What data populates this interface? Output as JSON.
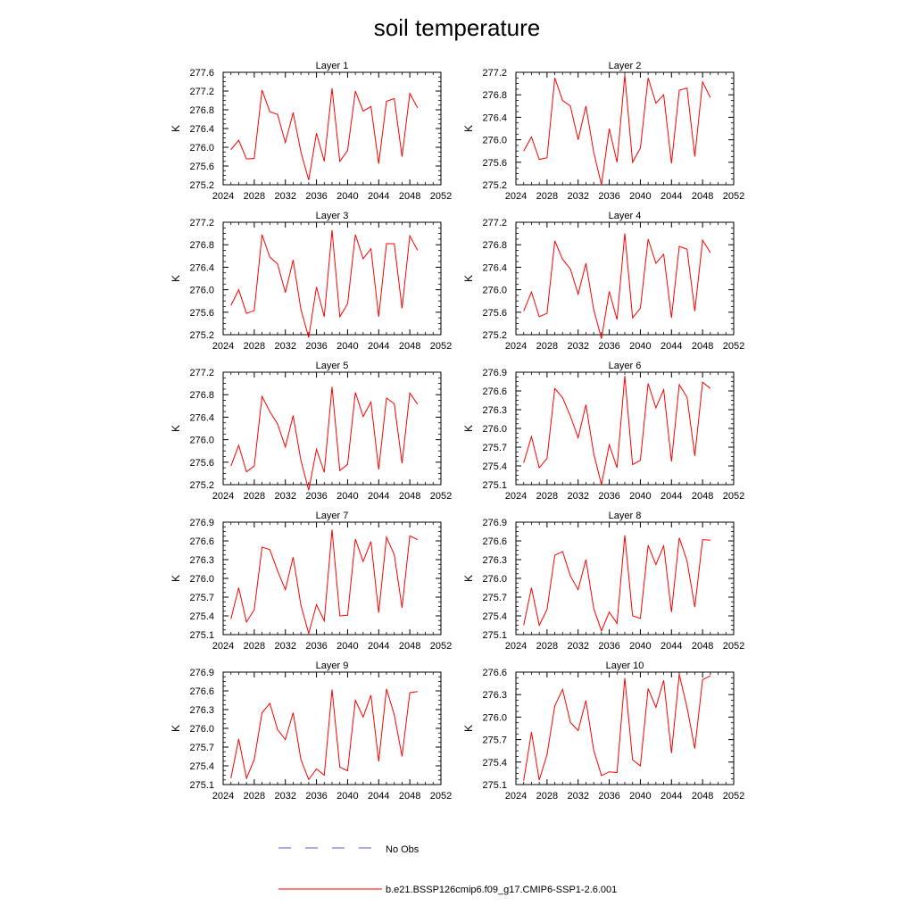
{
  "figure": {
    "title": "soil temperature",
    "ylabel": "K",
    "legend": [
      {
        "label": "No Obs",
        "color": "#5a5ad6",
        "dash": true
      },
      {
        "label": "b.e21.BSSP126cmip6.f09_g17.CMIP6-SSP1-2.6.001",
        "color": "#ff0000",
        "dash": false
      }
    ]
  },
  "chart_data": [
    {
      "type": "line",
      "title": "Layer 1",
      "ylabel": "K",
      "xlim": [
        2024,
        2052
      ],
      "ylim": [
        275.2,
        277.6
      ],
      "xticks": [
        "2024",
        "2028",
        "2032",
        "2036",
        "2040",
        "2044",
        "2048",
        "2052"
      ],
      "yticks": [
        "275.2",
        "275.6",
        "276.0",
        "276.4",
        "276.8",
        "277.2",
        "277.6"
      ],
      "x": [
        2025,
        2026,
        2027,
        2028,
        2029,
        2030,
        2031,
        2032,
        2033,
        2034,
        2035,
        2036,
        2037,
        2038,
        2039,
        2040,
        2041,
        2042,
        2043,
        2044,
        2045,
        2046,
        2047,
        2048,
        2049
      ],
      "series": [
        {
          "name": "b.e21.BSSP126cmip6.f09_g17.CMIP6-SSP1-2.6.001",
          "color": "#ff0000",
          "values": [
            275.95,
            276.15,
            275.75,
            275.76,
            277.22,
            276.76,
            276.7,
            276.1,
            276.74,
            275.9,
            275.3,
            276.3,
            275.7,
            277.26,
            275.7,
            275.93,
            277.2,
            276.77,
            276.87,
            275.65,
            276.98,
            277.04,
            275.8,
            277.15,
            276.84
          ]
        }
      ]
    },
    {
      "type": "line",
      "title": "Layer 2",
      "ylabel": "K",
      "xlim": [
        2024,
        2052
      ],
      "ylim": [
        275.2,
        277.2
      ],
      "xticks": [
        "2024",
        "2028",
        "2032",
        "2036",
        "2040",
        "2044",
        "2048",
        "2052"
      ],
      "yticks": [
        "275.2",
        "275.6",
        "276.0",
        "276.4",
        "276.8",
        "277.2"
      ],
      "x": [
        2025,
        2026,
        2027,
        2028,
        2029,
        2030,
        2031,
        2032,
        2033,
        2034,
        2035,
        2036,
        2037,
        2038,
        2039,
        2040,
        2041,
        2042,
        2043,
        2044,
        2045,
        2046,
        2047,
        2048,
        2049
      ],
      "series": [
        {
          "name": "b.e21.BSSP126cmip6.f09_g17.CMIP6-SSP1-2.6.001",
          "color": "#ff0000",
          "values": [
            275.8,
            276.05,
            275.65,
            275.68,
            277.1,
            276.7,
            276.6,
            276.0,
            276.6,
            275.78,
            275.2,
            276.2,
            275.6,
            277.15,
            275.6,
            275.85,
            277.1,
            276.65,
            276.8,
            275.58,
            276.88,
            276.92,
            275.7,
            277.03,
            276.75
          ]
        }
      ]
    },
    {
      "type": "line",
      "title": "Layer 3",
      "ylabel": "K",
      "xlim": [
        2024,
        2052
      ],
      "ylim": [
        275.2,
        277.2
      ],
      "xticks": [
        "2024",
        "2028",
        "2032",
        "2036",
        "2040",
        "2044",
        "2048",
        "2052"
      ],
      "yticks": [
        "275.2",
        "275.6",
        "276.0",
        "276.4",
        "276.8",
        "277.2"
      ],
      "x": [
        2025,
        2026,
        2027,
        2028,
        2029,
        2030,
        2031,
        2032,
        2033,
        2034,
        2035,
        2036,
        2037,
        2038,
        2039,
        2040,
        2041,
        2042,
        2043,
        2044,
        2045,
        2046,
        2047,
        2048,
        2049
      ],
      "series": [
        {
          "name": "b.e21.BSSP126cmip6.f09_g17.CMIP6-SSP1-2.6.001",
          "color": "#ff0000",
          "values": [
            275.72,
            276.0,
            275.58,
            275.63,
            276.98,
            276.58,
            276.46,
            275.95,
            276.53,
            275.65,
            275.15,
            276.05,
            275.52,
            277.06,
            275.52,
            275.75,
            276.98,
            276.55,
            276.73,
            275.52,
            276.82,
            276.82,
            275.67,
            276.96,
            276.7
          ]
        }
      ]
    },
    {
      "type": "line",
      "title": "Layer 4",
      "ylabel": "K",
      "xlim": [
        2024,
        2052
      ],
      "ylim": [
        275.2,
        277.2
      ],
      "xticks": [
        "2024",
        "2028",
        "2032",
        "2036",
        "2040",
        "2044",
        "2048",
        "2052"
      ],
      "yticks": [
        "275.2",
        "275.6",
        "276.0",
        "276.4",
        "276.8",
        "277.2"
      ],
      "x": [
        2025,
        2026,
        2027,
        2028,
        2029,
        2030,
        2031,
        2032,
        2033,
        2034,
        2035,
        2036,
        2037,
        2038,
        2039,
        2040,
        2041,
        2042,
        2043,
        2044,
        2045,
        2046,
        2047,
        2048,
        2049
      ],
      "series": [
        {
          "name": "b.e21.BSSP126cmip6.f09_g17.CMIP6-SSP1-2.6.001",
          "color": "#ff0000",
          "values": [
            275.62,
            275.96,
            275.52,
            275.58,
            276.87,
            276.54,
            276.37,
            275.92,
            276.47,
            275.65,
            275.13,
            275.97,
            275.47,
            277.0,
            275.5,
            275.67,
            276.9,
            276.47,
            276.63,
            275.5,
            276.77,
            276.72,
            275.62,
            276.88,
            276.66
          ]
        }
      ]
    },
    {
      "type": "line",
      "title": "Layer 5",
      "ylabel": "K",
      "xlim": [
        2024,
        2052
      ],
      "ylim": [
        275.2,
        277.2
      ],
      "xticks": [
        "2024",
        "2028",
        "2032",
        "2036",
        "2040",
        "2044",
        "2048",
        "2052"
      ],
      "yticks": [
        "275.2",
        "275.6",
        "276.0",
        "276.4",
        "276.8",
        "277.2"
      ],
      "x": [
        2025,
        2026,
        2027,
        2028,
        2029,
        2030,
        2031,
        2032,
        2033,
        2034,
        2035,
        2036,
        2037,
        2038,
        2039,
        2040,
        2041,
        2042,
        2043,
        2044,
        2045,
        2046,
        2047,
        2048,
        2049
      ],
      "series": [
        {
          "name": "b.e21.BSSP126cmip6.f09_g17.CMIP6-SSP1-2.6.001",
          "color": "#ff0000",
          "values": [
            275.53,
            275.9,
            275.43,
            275.53,
            276.77,
            276.5,
            276.28,
            275.87,
            276.43,
            275.63,
            275.1,
            275.83,
            275.42,
            276.94,
            275.45,
            275.56,
            276.84,
            276.41,
            276.67,
            275.47,
            276.74,
            276.64,
            275.58,
            276.83,
            276.63
          ]
        }
      ]
    },
    {
      "type": "line",
      "title": "Layer 6",
      "ylabel": "K",
      "xlim": [
        2024,
        2052
      ],
      "ylim": [
        275.1,
        276.9
      ],
      "xticks": [
        "2024",
        "2028",
        "2032",
        "2036",
        "2040",
        "2044",
        "2048",
        "2052"
      ],
      "yticks": [
        "275.1",
        "275.4",
        "275.7",
        "276.0",
        "276.3",
        "276.6",
        "276.9"
      ],
      "x": [
        2025,
        2026,
        2027,
        2028,
        2029,
        2030,
        2031,
        2032,
        2033,
        2034,
        2035,
        2036,
        2037,
        2038,
        2039,
        2040,
        2041,
        2042,
        2043,
        2044,
        2045,
        2046,
        2047,
        2048,
        2049
      ],
      "series": [
        {
          "name": "b.e21.BSSP126cmip6.f09_g17.CMIP6-SSP1-2.6.001",
          "color": "#ff0000",
          "values": [
            275.45,
            275.87,
            275.37,
            275.52,
            276.64,
            276.49,
            276.2,
            275.85,
            276.38,
            275.6,
            275.1,
            275.74,
            275.37,
            276.84,
            275.42,
            275.49,
            276.72,
            276.33,
            276.62,
            275.47,
            276.7,
            276.5,
            275.56,
            276.74,
            276.64
          ]
        }
      ]
    },
    {
      "type": "line",
      "title": "Layer 7",
      "ylabel": "K",
      "xlim": [
        2024,
        2052
      ],
      "ylim": [
        275.1,
        276.9
      ],
      "xticks": [
        "2024",
        "2028",
        "2032",
        "2036",
        "2040",
        "2044",
        "2048",
        "2052"
      ],
      "yticks": [
        "275.1",
        "275.4",
        "275.7",
        "276.0",
        "276.3",
        "276.6",
        "276.9"
      ],
      "x": [
        2025,
        2026,
        2027,
        2028,
        2029,
        2030,
        2031,
        2032,
        2033,
        2034,
        2035,
        2036,
        2037,
        2038,
        2039,
        2040,
        2041,
        2042,
        2043,
        2044,
        2045,
        2046,
        2047,
        2048,
        2049
      ],
      "series": [
        {
          "name": "b.e21.BSSP126cmip6.f09_g17.CMIP6-SSP1-2.6.001",
          "color": "#ff0000",
          "values": [
            275.35,
            275.85,
            275.3,
            275.5,
            276.5,
            276.46,
            276.12,
            275.82,
            276.34,
            275.57,
            275.12,
            275.58,
            275.32,
            276.78,
            275.4,
            275.41,
            276.63,
            276.27,
            276.59,
            275.45,
            276.66,
            276.38,
            275.53,
            276.68,
            276.62
          ]
        }
      ]
    },
    {
      "type": "line",
      "title": "Layer 8",
      "ylabel": "K",
      "xlim": [
        2024,
        2052
      ],
      "ylim": [
        275.1,
        276.9
      ],
      "xticks": [
        "2024",
        "2028",
        "2032",
        "2036",
        "2040",
        "2044",
        "2048",
        "2052"
      ],
      "yticks": [
        "275.1",
        "275.4",
        "275.7",
        "276.0",
        "276.3",
        "276.6",
        "276.9"
      ],
      "x": [
        2025,
        2026,
        2027,
        2028,
        2029,
        2030,
        2031,
        2032,
        2033,
        2034,
        2035,
        2036,
        2037,
        2038,
        2039,
        2040,
        2041,
        2042,
        2043,
        2044,
        2045,
        2046,
        2047,
        2048,
        2049
      ],
      "series": [
        {
          "name": "b.e21.BSSP126cmip6.f09_g17.CMIP6-SSP1-2.6.001",
          "color": "#ff0000",
          "values": [
            275.25,
            275.85,
            275.25,
            275.5,
            276.37,
            276.43,
            276.04,
            275.82,
            276.3,
            275.52,
            275.16,
            275.46,
            275.28,
            276.69,
            275.4,
            275.36,
            276.53,
            276.22,
            276.52,
            275.46,
            276.65,
            276.28,
            275.54,
            276.62,
            276.61
          ]
        }
      ]
    },
    {
      "type": "line",
      "title": "Layer 9",
      "ylabel": "K",
      "xlim": [
        2024,
        2052
      ],
      "ylim": [
        275.1,
        276.9
      ],
      "xticks": [
        "2024",
        "2028",
        "2032",
        "2036",
        "2040",
        "2044",
        "2048",
        "2052"
      ],
      "yticks": [
        "275.1",
        "275.4",
        "275.7",
        "276.0",
        "276.3",
        "276.6",
        "276.9"
      ],
      "x": [
        2025,
        2026,
        2027,
        2028,
        2029,
        2030,
        2031,
        2032,
        2033,
        2034,
        2035,
        2036,
        2037,
        2038,
        2039,
        2040,
        2041,
        2042,
        2043,
        2044,
        2045,
        2046,
        2047,
        2048,
        2049
      ],
      "series": [
        {
          "name": "b.e21.BSSP126cmip6.f09_g17.CMIP6-SSP1-2.6.001",
          "color": "#ff0000",
          "values": [
            275.2,
            275.83,
            275.2,
            275.5,
            276.25,
            276.4,
            275.98,
            275.82,
            276.25,
            275.5,
            275.18,
            275.35,
            275.25,
            276.62,
            275.38,
            275.32,
            276.45,
            276.18,
            276.53,
            275.47,
            276.63,
            276.22,
            275.55,
            276.57,
            276.59
          ]
        }
      ]
    },
    {
      "type": "line",
      "title": "Layer 10",
      "ylabel": "K",
      "xlim": [
        2024,
        2052
      ],
      "ylim": [
        275.1,
        276.6
      ],
      "xticks": [
        "2024",
        "2028",
        "2032",
        "2036",
        "2040",
        "2044",
        "2048",
        "2052"
      ],
      "yticks": [
        "275.1",
        "275.4",
        "275.7",
        "276.0",
        "276.3",
        "276.6"
      ],
      "x": [
        2025,
        2026,
        2027,
        2028,
        2029,
        2030,
        2031,
        2032,
        2033,
        2034,
        2035,
        2036,
        2037,
        2038,
        2039,
        2040,
        2041,
        2042,
        2043,
        2044,
        2045,
        2046,
        2047,
        2048,
        2049
      ],
      "series": [
        {
          "name": "b.e21.BSSP126cmip6.f09_g17.CMIP6-SSP1-2.6.001",
          "color": "#ff0000",
          "values": [
            275.15,
            275.8,
            275.16,
            275.5,
            276.15,
            276.37,
            275.93,
            275.82,
            276.22,
            275.56,
            275.22,
            275.27,
            275.26,
            276.52,
            275.43,
            275.35,
            276.38,
            276.13,
            276.49,
            275.52,
            276.57,
            276.13,
            275.58,
            276.5,
            276.55
          ]
        }
      ]
    }
  ]
}
